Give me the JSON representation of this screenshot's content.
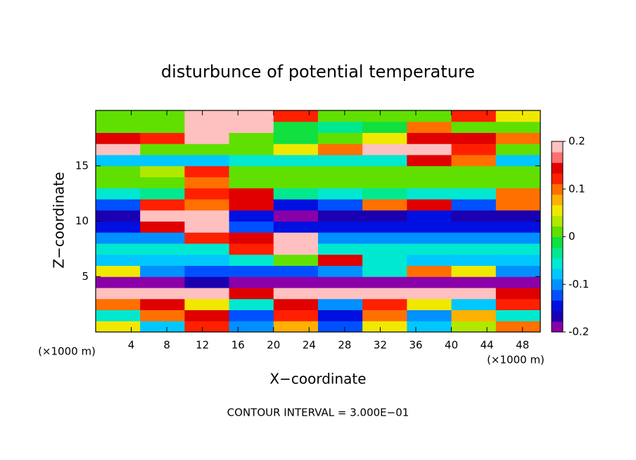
{
  "chart_data": {
    "type": "contour",
    "title": "disturbunce of potential temperature",
    "x_label": "X−coordinate",
    "y_label": "Z−coordinate",
    "x_unit": "(×1000 m)",
    "y_unit": "(×1000 m)",
    "annotation": "CONTOUR INTERVAL = 3.000E−01",
    "xlim": [
      0,
      50
    ],
    "ylim": [
      0,
      20
    ],
    "xticks": [
      4,
      8,
      12,
      16,
      20,
      24,
      28,
      32,
      36,
      40,
      44,
      48
    ],
    "yticks": [
      5,
      10,
      15
    ],
    "clim": [
      -0.2,
      0.2
    ],
    "cticks": [
      -0.2,
      -0.1,
      0,
      0.1,
      0.2
    ],
    "colors": [
      "#8a00a8",
      "#1a00b0",
      "#0010e0",
      "#0050ff",
      "#0090ff",
      "#00c8ff",
      "#00e8d0",
      "#00e890",
      "#10e040",
      "#60e000",
      "#b0e800",
      "#f0e800",
      "#ffb000",
      "#ff7000",
      "#ff2000",
      "#e00000",
      "#ff7070",
      "#ffc0c0"
    ],
    "x": [
      2.5,
      7.5,
      12.5,
      17.5,
      22.5,
      27.5,
      32.5,
      37.5,
      42.5,
      47.5
    ],
    "y": [
      0.5,
      1.5,
      2.5,
      3.5,
      4.5,
      5.5,
      6.5,
      7.5,
      8.5,
      9.5,
      10.5,
      11.5,
      12.5,
      13.5,
      14.5,
      15.5,
      16.5,
      17.5,
      18.5,
      19.5
    ],
    "z": [
      [
        0.05,
        -0.08,
        0.12,
        -0.1,
        0.08,
        -0.12,
        0.06,
        -0.08,
        0.04,
        0.1
      ],
      [
        -0.05,
        0.1,
        0.15,
        -0.12,
        0.12,
        -0.14,
        0.1,
        -0.1,
        0.08,
        -0.05
      ],
      [
        0.1,
        0.15,
        0.05,
        -0.05,
        0.15,
        -0.1,
        0.12,
        0.05,
        -0.08,
        0.12
      ],
      [
        0.2,
        0.2,
        0.2,
        0.15,
        0.2,
        0.18,
        0.2,
        0.2,
        0.2,
        0.15
      ],
      [
        -0.18,
        -0.18,
        -0.17,
        -0.18,
        -0.19,
        -0.18,
        -0.18,
        -0.18,
        -0.18,
        -0.18
      ],
      [
        0.05,
        -0.1,
        -0.12,
        -0.12,
        -0.12,
        -0.1,
        -0.05,
        0.1,
        0.05,
        -0.1
      ],
      [
        -0.08,
        -0.08,
        -0.07,
        -0.06,
        0.0,
        0.15,
        -0.06,
        -0.07,
        -0.07,
        -0.08
      ],
      [
        -0.06,
        -0.06,
        -0.05,
        0.12,
        0.2,
        -0.05,
        -0.05,
        -0.06,
        -0.06,
        -0.06
      ],
      [
        -0.1,
        -0.09,
        0.12,
        0.15,
        0.18,
        -0.1,
        -0.1,
        -0.1,
        -0.1,
        -0.1
      ],
      [
        -0.14,
        0.15,
        0.2,
        -0.12,
        -0.14,
        -0.15,
        -0.14,
        -0.14,
        -0.14,
        -0.14
      ],
      [
        -0.16,
        0.18,
        0.2,
        -0.15,
        -0.18,
        -0.16,
        -0.16,
        -0.15,
        -0.16,
        -0.17
      ],
      [
        -0.13,
        0.12,
        0.1,
        0.15,
        -0.14,
        -0.12,
        0.1,
        0.15,
        -0.13,
        0.1
      ],
      [
        -0.05,
        -0.04,
        0.12,
        0.15,
        -0.04,
        -0.05,
        -0.04,
        -0.05,
        -0.05,
        0.1
      ],
      [
        0.0,
        0.02,
        0.1,
        0.02,
        0.0,
        0.0,
        0.0,
        0.0,
        0.0,
        0.0
      ],
      [
        0.02,
        0.03,
        0.12,
        0.02,
        0.02,
        0.02,
        0.02,
        0.02,
        0.02,
        0.02
      ],
      [
        -0.08,
        -0.07,
        -0.07,
        -0.06,
        -0.06,
        -0.06,
        -0.06,
        0.15,
        0.1,
        -0.07
      ],
      [
        0.2,
        0.0,
        0.0,
        0.02,
        0.05,
        0.1,
        0.2,
        0.2,
        0.12,
        0.0
      ],
      [
        0.15,
        0.12,
        0.2,
        0.0,
        -0.02,
        0.0,
        0.05,
        0.15,
        0.15,
        0.1
      ],
      [
        0.0,
        0.02,
        0.2,
        0.2,
        -0.02,
        -0.03,
        -0.02,
        0.1,
        0.02,
        0.0
      ],
      [
        0.0,
        0.0,
        0.2,
        0.2,
        0.12,
        0.0,
        0.0,
        0.0,
        0.12,
        0.05
      ]
    ]
  }
}
